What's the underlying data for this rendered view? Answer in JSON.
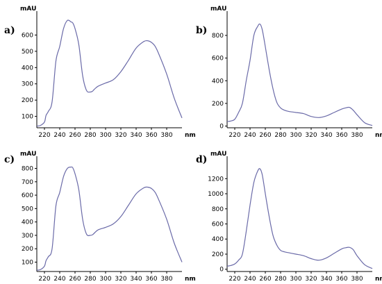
{
  "colors": {
    "trace": "#6a6aa8",
    "axis": "#000000"
  },
  "chart_data": [
    {
      "type": "line",
      "panel_label": "a)",
      "ylabel": "mAU",
      "xlabel": "nm",
      "xlim": [
        210,
        400
      ],
      "ylim": [
        30,
        730
      ],
      "xticks": [
        220,
        240,
        260,
        280,
        300,
        320,
        340,
        360,
        380
      ],
      "yticks": [
        100,
        200,
        300,
        400,
        500,
        600
      ],
      "series": [
        {
          "x": [
            210,
            215,
            220,
            222,
            225,
            230,
            235,
            240,
            245,
            250,
            255,
            257,
            260,
            265,
            270,
            275,
            280,
            283,
            285,
            290,
            300,
            310,
            320,
            330,
            340,
            350,
            355,
            360,
            365,
            370,
            380,
            390,
            400
          ],
          "y": [
            40,
            45,
            65,
            105,
            130,
            190,
            440,
            530,
            640,
            690,
            680,
            675,
            640,
            540,
            350,
            260,
            250,
            255,
            265,
            285,
            305,
            325,
            375,
            445,
            520,
            560,
            565,
            555,
            530,
            480,
            360,
            210,
            90
          ]
        }
      ]
    },
    {
      "type": "line",
      "panel_label": "b)",
      "ylabel": "mAU",
      "xlabel": "nm",
      "xlim": [
        210,
        400
      ],
      "ylim": [
        -15,
        990
      ],
      "xticks": [
        220,
        240,
        260,
        280,
        300,
        320,
        340,
        360,
        380
      ],
      "yticks": [
        0,
        200,
        400,
        600,
        800
      ],
      "series": [
        {
          "x": [
            210,
            215,
            220,
            225,
            230,
            235,
            240,
            245,
            250,
            253,
            256,
            260,
            265,
            270,
            275,
            280,
            285,
            290,
            300,
            310,
            320,
            330,
            340,
            350,
            360,
            365,
            370,
            375,
            380,
            390,
            400
          ],
          "y": [
            40,
            45,
            60,
            120,
            200,
            400,
            580,
            800,
            880,
            900,
            850,
            700,
            500,
            330,
            210,
            160,
            140,
            130,
            120,
            110,
            85,
            75,
            90,
            120,
            150,
            160,
            165,
            140,
            100,
            30,
            5
          ]
        }
      ]
    },
    {
      "type": "line",
      "panel_label": "c)",
      "ylabel": "mAU",
      "xlabel": "nm",
      "xlim": [
        210,
        400
      ],
      "ylim": [
        30,
        870
      ],
      "xticks": [
        220,
        240,
        260,
        280,
        300,
        320,
        340,
        360,
        380
      ],
      "yticks": [
        100,
        200,
        300,
        400,
        500,
        600,
        700,
        800
      ],
      "series": [
        {
          "x": [
            210,
            215,
            220,
            222,
            225,
            230,
            235,
            240,
            245,
            250,
            255,
            257,
            260,
            265,
            270,
            275,
            280,
            283,
            285,
            290,
            300,
            310,
            320,
            330,
            340,
            350,
            355,
            360,
            365,
            370,
            380,
            390,
            400
          ],
          "y": [
            40,
            45,
            70,
            110,
            140,
            200,
            520,
            620,
            740,
            800,
            810,
            805,
            760,
            640,
            420,
            310,
            300,
            305,
            315,
            340,
            360,
            385,
            440,
            525,
            610,
            655,
            660,
            650,
            620,
            560,
            420,
            240,
            100
          ]
        }
      ]
    },
    {
      "type": "line",
      "panel_label": "d)",
      "ylabel": "mAU",
      "xlabel": "nm",
      "xlim": [
        210,
        400
      ],
      "ylim": [
        -30,
        1460
      ],
      "xticks": [
        220,
        240,
        260,
        280,
        300,
        320,
        340,
        360,
        380
      ],
      "yticks": [
        0,
        200,
        400,
        600,
        800,
        1000,
        1200
      ],
      "series": [
        {
          "x": [
            210,
            215,
            220,
            225,
            230,
            235,
            240,
            245,
            250,
            253,
            256,
            260,
            265,
            270,
            275,
            280,
            285,
            290,
            300,
            310,
            320,
            330,
            340,
            350,
            360,
            365,
            370,
            375,
            380,
            390,
            400
          ],
          "y": [
            40,
            50,
            70,
            120,
            200,
            500,
            850,
            1150,
            1300,
            1330,
            1250,
            1000,
            700,
            450,
            320,
            250,
            230,
            220,
            200,
            180,
            140,
            120,
            150,
            210,
            270,
            285,
            290,
            260,
            180,
            60,
            10
          ]
        }
      ]
    }
  ]
}
